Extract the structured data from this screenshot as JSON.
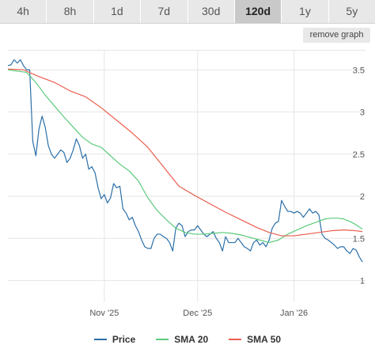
{
  "ranges": [
    {
      "label": "4h",
      "active": false
    },
    {
      "label": "8h",
      "active": false
    },
    {
      "label": "1d",
      "active": false
    },
    {
      "label": "7d",
      "active": false
    },
    {
      "label": "30d",
      "active": false
    },
    {
      "label": "120d",
      "active": true
    },
    {
      "label": "1y",
      "active": false
    },
    {
      "label": "5y",
      "active": false
    }
  ],
  "remove_graph_label": "remove graph",
  "chart_data": {
    "type": "line",
    "x_ticks": [
      "Nov '25",
      "Dec '25",
      "Jan '26"
    ],
    "x_tick_days": [
      31,
      61,
      92
    ],
    "x_range": [
      0,
      115
    ],
    "ylim": [
      1,
      3.95
    ],
    "y_ticks": [
      1,
      1.5,
      2,
      2.5,
      3,
      3.5
    ],
    "y_tick_labels": [
      "1",
      "1.5",
      "2",
      "2.5",
      "3",
      "3.5"
    ],
    "grid": true,
    "legend_position": "bottom",
    "series": [
      {
        "name": "Price",
        "color": "#2b6fa8",
        "points": [
          [
            0,
            3.55
          ],
          [
            1,
            3.56
          ],
          [
            2,
            3.62
          ],
          [
            3,
            3.58
          ],
          [
            4,
            3.62
          ],
          [
            5,
            3.55
          ],
          [
            6,
            3.5
          ],
          [
            7,
            3.5
          ],
          [
            8,
            2.65
          ],
          [
            9,
            2.48
          ],
          [
            10,
            2.8
          ],
          [
            11,
            2.95
          ],
          [
            12,
            2.82
          ],
          [
            13,
            2.6
          ],
          [
            14,
            2.5
          ],
          [
            15,
            2.45
          ],
          [
            16,
            2.5
          ],
          [
            17,
            2.55
          ],
          [
            18,
            2.52
          ],
          [
            19,
            2.4
          ],
          [
            20,
            2.45
          ],
          [
            21,
            2.55
          ],
          [
            22,
            2.68
          ],
          [
            23,
            2.6
          ],
          [
            24,
            2.45
          ],
          [
            25,
            2.5
          ],
          [
            26,
            2.32
          ],
          [
            27,
            2.35
          ],
          [
            28,
            2.28
          ],
          [
            29,
            2.1
          ],
          [
            30,
            1.97
          ],
          [
            31,
            2.02
          ],
          [
            32,
            1.92
          ],
          [
            33,
            1.98
          ],
          [
            34,
            2.15
          ],
          [
            35,
            2.1
          ],
          [
            36,
            2.12
          ],
          [
            37,
            1.85
          ],
          [
            38,
            1.8
          ],
          [
            39,
            1.72
          ],
          [
            40,
            1.75
          ],
          [
            41,
            1.65
          ],
          [
            42,
            1.58
          ],
          [
            43,
            1.48
          ],
          [
            44,
            1.4
          ],
          [
            45,
            1.38
          ],
          [
            46,
            1.38
          ],
          [
            47,
            1.5
          ],
          [
            48,
            1.55
          ],
          [
            49,
            1.55
          ],
          [
            50,
            1.52
          ],
          [
            51,
            1.5
          ],
          [
            52,
            1.45
          ],
          [
            53,
            1.35
          ],
          [
            54,
            1.62
          ],
          [
            55,
            1.68
          ],
          [
            56,
            1.65
          ],
          [
            57,
            1.52
          ],
          [
            58,
            1.58
          ],
          [
            59,
            1.6
          ],
          [
            60,
            1.6
          ],
          [
            61,
            1.65
          ],
          [
            62,
            1.6
          ],
          [
            63,
            1.55
          ],
          [
            64,
            1.52
          ],
          [
            65,
            1.55
          ],
          [
            66,
            1.58
          ],
          [
            67,
            1.5
          ],
          [
            68,
            1.45
          ],
          [
            69,
            1.35
          ],
          [
            70,
            1.52
          ],
          [
            71,
            1.45
          ],
          [
            72,
            1.45
          ],
          [
            73,
            1.45
          ],
          [
            74,
            1.5
          ],
          [
            75,
            1.45
          ],
          [
            76,
            1.4
          ],
          [
            77,
            1.38
          ],
          [
            78,
            1.35
          ],
          [
            79,
            1.45
          ],
          [
            80,
            1.48
          ],
          [
            81,
            1.42
          ],
          [
            82,
            1.45
          ],
          [
            83,
            1.4
          ],
          [
            84,
            1.48
          ],
          [
            85,
            1.62
          ],
          [
            86,
            1.68
          ],
          [
            87,
            1.7
          ],
          [
            88,
            1.95
          ],
          [
            89,
            1.88
          ],
          [
            90,
            1.82
          ],
          [
            91,
            1.82
          ],
          [
            92,
            1.8
          ],
          [
            93,
            1.82
          ],
          [
            94,
            1.8
          ],
          [
            95,
            1.75
          ],
          [
            96,
            1.8
          ],
          [
            97,
            1.85
          ],
          [
            98,
            1.8
          ],
          [
            99,
            1.82
          ],
          [
            100,
            1.78
          ],
          [
            101,
            1.55
          ],
          [
            102,
            1.5
          ],
          [
            103,
            1.48
          ],
          [
            104,
            1.45
          ],
          [
            105,
            1.42
          ],
          [
            106,
            1.38
          ],
          [
            107,
            1.4
          ],
          [
            108,
            1.4
          ],
          [
            109,
            1.35
          ],
          [
            110,
            1.32
          ],
          [
            111,
            1.38
          ],
          [
            112,
            1.36
          ],
          [
            113,
            1.28
          ],
          [
            114,
            1.22
          ]
        ]
      },
      {
        "name": "SMA 20",
        "color": "#5ccb7c",
        "points": [
          [
            0,
            3.5
          ],
          [
            6,
            3.47
          ],
          [
            9,
            3.35
          ],
          [
            12,
            3.2
          ],
          [
            15,
            3.07
          ],
          [
            18,
            2.94
          ],
          [
            21,
            2.82
          ],
          [
            24,
            2.7
          ],
          [
            27,
            2.62
          ],
          [
            30,
            2.58
          ],
          [
            33,
            2.48
          ],
          [
            36,
            2.38
          ],
          [
            39,
            2.3
          ],
          [
            42,
            2.18
          ],
          [
            45,
            1.98
          ],
          [
            48,
            1.83
          ],
          [
            51,
            1.72
          ],
          [
            54,
            1.62
          ],
          [
            57,
            1.57
          ],
          [
            60,
            1.55
          ],
          [
            63,
            1.55
          ],
          [
            66,
            1.56
          ],
          [
            69,
            1.57
          ],
          [
            72,
            1.56
          ],
          [
            75,
            1.54
          ],
          [
            78,
            1.51
          ],
          [
            81,
            1.48
          ],
          [
            84,
            1.45
          ],
          [
            87,
            1.48
          ],
          [
            90,
            1.55
          ],
          [
            93,
            1.6
          ],
          [
            96,
            1.65
          ],
          [
            99,
            1.69
          ],
          [
            102,
            1.73
          ],
          [
            104,
            1.74
          ],
          [
            106,
            1.74
          ],
          [
            108,
            1.73
          ],
          [
            110,
            1.7
          ],
          [
            112,
            1.66
          ],
          [
            114,
            1.61
          ]
        ]
      },
      {
        "name": "SMA 50",
        "color": "#ea5e4f",
        "points": [
          [
            0,
            3.51
          ],
          [
            5,
            3.5
          ],
          [
            10,
            3.42
          ],
          [
            15,
            3.35
          ],
          [
            20,
            3.25
          ],
          [
            25,
            3.18
          ],
          [
            30,
            3.05
          ],
          [
            35,
            2.9
          ],
          [
            40,
            2.75
          ],
          [
            45,
            2.58
          ],
          [
            50,
            2.35
          ],
          [
            55,
            2.12
          ],
          [
            60,
            2.01
          ],
          [
            65,
            1.91
          ],
          [
            70,
            1.81
          ],
          [
            75,
            1.72
          ],
          [
            80,
            1.63
          ],
          [
            84,
            1.57
          ],
          [
            88,
            1.53
          ],
          [
            92,
            1.53
          ],
          [
            96,
            1.55
          ],
          [
            100,
            1.57
          ],
          [
            104,
            1.59
          ],
          [
            108,
            1.6
          ],
          [
            112,
            1.59
          ],
          [
            114,
            1.58
          ]
        ]
      }
    ]
  },
  "legend": [
    {
      "label": "Price",
      "color": "#2b6fa8"
    },
    {
      "label": "SMA 20",
      "color": "#5ccb7c"
    },
    {
      "label": "SMA 50",
      "color": "#ea5e4f"
    }
  ]
}
